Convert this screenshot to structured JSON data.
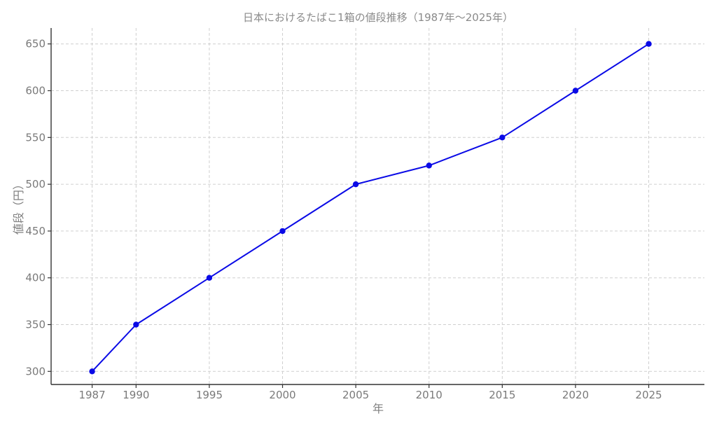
{
  "chart_data": {
    "type": "line",
    "title": "日本におけるたばこ1箱の値段推移（1987年〜2025年）",
    "xlabel": "年",
    "ylabel": "値段（円）",
    "x": [
      1987,
      1990,
      1995,
      2000,
      2005,
      2010,
      2015,
      2020,
      2025
    ],
    "x_tick_labels": [
      "1987",
      "1990",
      "1995",
      "2000",
      "2005",
      "2010",
      "2015",
      "2020",
      "2025"
    ],
    "y_ticks": [
      300,
      350,
      400,
      450,
      500,
      550,
      600,
      650
    ],
    "series": [
      {
        "values": [
          300,
          350,
          400,
          450,
          500,
          520,
          550,
          600,
          650
        ],
        "color": "#0a0ae6"
      }
    ],
    "xlim": [
      1984.2,
      2028.8
    ],
    "ylim": [
      286,
      667
    ],
    "grid": true,
    "legend": "none"
  }
}
